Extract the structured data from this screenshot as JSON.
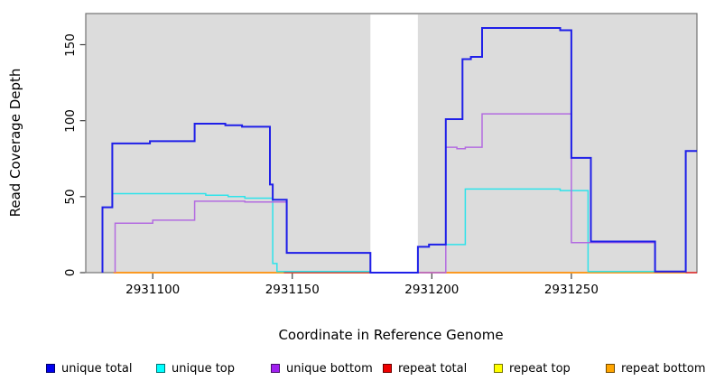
{
  "chart_data": {
    "type": "line",
    "step": true,
    "title": "",
    "xlabel": "Coordinate in Reference Genome",
    "ylabel": "Read Coverage Depth",
    "xlim": [
      2931076,
      2931295
    ],
    "ylim": [
      0,
      170.5
    ],
    "x_ticks": [
      2931100,
      2931150,
      2931200,
      2931250
    ],
    "x_tick_labels": [
      "2931100",
      "2931150",
      "2931200",
      "2931250"
    ],
    "y_ticks": [
      0,
      50,
      100,
      150
    ],
    "y_tick_labels": [
      "0",
      "50",
      "100",
      "150"
    ],
    "panel_background": "#dcdcdc",
    "panel_border_color": "#737373",
    "tick_color": "#3d3d3d",
    "gap_region": {
      "from": 2931178,
      "to": 2931195,
      "color": "#ffffff"
    },
    "legend_position": "bottom",
    "grid": false,
    "draw_order": [
      "repeat top",
      "repeat total",
      "repeat bottom",
      "unique top",
      "unique bottom",
      "unique total"
    ],
    "series": [
      {
        "label": "unique total",
        "color": "#1f1fe8",
        "swatch": "#0000ee",
        "line_width": 2,
        "segments": [
          {
            "points": [
              [
                2931082,
                43
              ],
              [
                2931085.5,
                85
              ],
              [
                2931099,
                86.5
              ],
              [
                2931115,
                98
              ],
              [
                2931126,
                97
              ],
              [
                2931132,
                96
              ],
              [
                2931142,
                58
              ],
              [
                2931143,
                48
              ],
              [
                2931148,
                13
              ],
              [
                2931178,
                0
              ],
              [
                2931195,
                17
              ],
              [
                2931199,
                18.5
              ],
              [
                2931205,
                101
              ],
              [
                2931211,
                140.5
              ],
              [
                2931214,
                142
              ],
              [
                2931218,
                161
              ],
              [
                2931246,
                159.5
              ],
              [
                2931250,
                75.5
              ],
              [
                2931257,
                20.5
              ],
              [
                2931280,
                0.8
              ],
              [
                2931291,
                80
              ]
            ],
            "end": 2931295
          }
        ]
      },
      {
        "label": "unique top",
        "color": "#2ee3ea",
        "swatch": "#00ffff",
        "line_width": 1.5,
        "segments": [
          {
            "points": [
              [
                2931082,
                43
              ],
              [
                2931085.5,
                52
              ],
              [
                2931119,
                51
              ],
              [
                2931127,
                50
              ],
              [
                2931133,
                49
              ],
              [
                2931143,
                6
              ],
              [
                2931144.5,
                0.7
              ],
              [
                2931178,
                0
              ],
              [
                2931195,
                17
              ],
              [
                2931199,
                18.5
              ],
              [
                2931212,
                55
              ],
              [
                2931246,
                54
              ],
              [
                2931256,
                0.7
              ],
              [
                2931291,
                80
              ]
            ],
            "end": 2931295
          }
        ]
      },
      {
        "label": "unique bottom",
        "color": "#b36be0",
        "swatch": "#a020f0",
        "line_width": 1.5,
        "segments": [
          {
            "points": [
              [
                2931086.5,
                32.5
              ],
              [
                2931100,
                34.5
              ],
              [
                2931115,
                47
              ],
              [
                2931133,
                46.5
              ],
              [
                2931148,
                13
              ],
              [
                2931178,
                0
              ],
              [
                2931205,
                82.5
              ],
              [
                2931209,
                81.5
              ],
              [
                2931212,
                82.5
              ],
              [
                2931218,
                104.5
              ],
              [
                2931250,
                19.8
              ],
              [
                2931280,
                0.8
              ]
            ],
            "end": 2931291
          }
        ]
      },
      {
        "label": "repeat total",
        "color": "#e22222",
        "swatch": "#ee0000",
        "line_width": 1.5,
        "segments": [
          {
            "points": [
              [
                2931086,
                0
              ]
            ],
            "end": 2931295
          }
        ]
      },
      {
        "label": "repeat top",
        "color": "#f2f200",
        "swatch": "#ffff00",
        "line_width": 1.5,
        "segments": [
          {
            "points": [
              [
                2931086,
                0
              ]
            ],
            "end": 2931291
          }
        ]
      },
      {
        "label": "repeat bottom",
        "color": "#ff9d1e",
        "swatch": "#ffa500",
        "line_width": 1.8,
        "segments": [
          {
            "points": [
              [
                2931086,
                0
              ]
            ],
            "end": 2931147
          },
          {
            "points": [
              [
                2931205,
                0
              ]
            ],
            "end": 2931291
          }
        ]
      }
    ]
  }
}
